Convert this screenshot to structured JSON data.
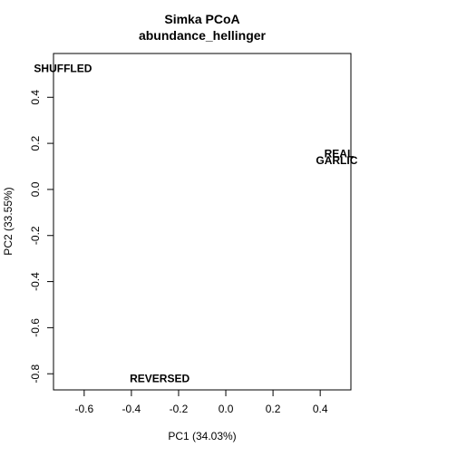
{
  "chart_data": {
    "type": "scatter",
    "title": "Simka PCoA",
    "subtitle": "abundance_hellinger",
    "xlabel": "PC1 (34.03%)",
    "ylabel": "PC2 (33.55%)",
    "xlim": [
      -0.73,
      0.53
    ],
    "ylim": [
      -0.87,
      0.59
    ],
    "x_ticks": [
      -0.6,
      -0.4,
      -0.2,
      0.0,
      0.2,
      0.4
    ],
    "y_ticks": [
      -0.8,
      -0.6,
      -0.4,
      -0.2,
      0.0,
      0.2,
      0.4
    ],
    "x_tick_labels": [
      "-0.6",
      "-0.4",
      "-0.2",
      "0.0",
      "0.2",
      "0.4"
    ],
    "y_tick_labels": [
      "-0.8",
      "-0.6",
      "-0.4",
      "-0.2",
      "0.0",
      "0.2",
      "0.4"
    ],
    "points": [
      {
        "label": "SHUFFLED",
        "x": -0.69,
        "y": 0.525
      },
      {
        "label": "REAL",
        "x": 0.48,
        "y": 0.155
      },
      {
        "label": "GARLIC",
        "x": 0.47,
        "y": 0.125
      },
      {
        "label": "REVERSED",
        "x": -0.28,
        "y": -0.82
      }
    ],
    "grid": false
  }
}
